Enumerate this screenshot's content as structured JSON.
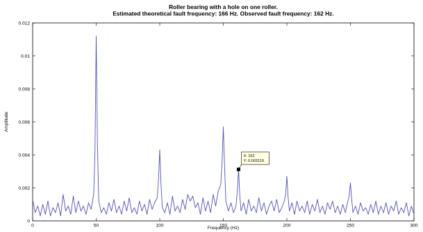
{
  "chart_data": {
    "type": "line",
    "title": [
      "Roller bearing with a hole on one roller.",
      "Estimated theoretical fault frequency: 166 Hz. Observed fault frequency: 162 Hz."
    ],
    "xlabel": "Frequency (Hz)",
    "ylabel": "Amplitude",
    "xlim": [
      0,
      300
    ],
    "ylim": [
      0,
      0.012
    ],
    "xticks": [
      0,
      50,
      100,
      150,
      200,
      250,
      300
    ],
    "yticks": [
      0,
      0.002,
      0.004,
      0.006,
      0.008,
      0.01,
      0.012
    ],
    "xtick_labels": [
      "0",
      "50",
      "100",
      "150",
      "200",
      "250",
      "300"
    ],
    "ytick_labels": [
      "0",
      "0.002",
      "0.004",
      "0.006",
      "0.008",
      "0.01",
      "0.012"
    ],
    "grid": false,
    "line_color": "#5252b4",
    "series": [
      {
        "x": [
          0,
          2,
          4,
          6,
          8,
          10,
          12,
          14,
          16,
          18,
          20,
          22,
          24,
          26,
          28,
          30,
          32,
          34,
          36,
          38,
          40,
          42,
          44,
          46,
          48,
          49,
          50,
          51,
          52,
          54,
          56,
          58,
          60,
          62,
          64,
          66,
          68,
          70,
          72,
          74,
          76,
          78,
          80,
          82,
          84,
          86,
          88,
          90,
          92,
          94,
          96,
          98,
          99,
          100,
          101,
          102,
          104,
          106,
          108,
          110,
          112,
          114,
          116,
          118,
          120,
          122,
          124,
          126,
          128,
          130,
          132,
          134,
          136,
          138,
          140,
          142,
          144,
          146,
          148,
          149,
          150,
          151,
          152,
          154,
          156,
          158,
          160,
          161,
          162,
          163,
          164,
          166,
          168,
          170,
          172,
          174,
          176,
          178,
          180,
          182,
          184,
          186,
          188,
          190,
          192,
          194,
          196,
          198,
          199,
          200,
          201,
          202,
          204,
          206,
          208,
          210,
          212,
          214,
          216,
          218,
          220,
          222,
          224,
          226,
          228,
          230,
          232,
          234,
          236,
          238,
          240,
          242,
          244,
          246,
          248,
          249,
          250,
          251,
          252,
          254,
          256,
          258,
          260,
          262,
          264,
          266,
          268,
          270,
          272,
          274,
          276,
          278,
          280,
          282,
          284,
          286,
          288,
          290,
          292,
          294,
          296,
          298,
          300
        ],
        "y": [
          0.0013,
          0.0005,
          0.0009,
          0.0003,
          0.001,
          0.0004,
          0.0012,
          0.0003,
          0.0008,
          0.0005,
          0.0011,
          0.0003,
          0.0016,
          0.0006,
          0.0009,
          0.0004,
          0.0015,
          0.0005,
          0.0012,
          0.0006,
          0.0009,
          0.0004,
          0.0011,
          0.0007,
          0.0016,
          0.004,
          0.0112,
          0.0045,
          0.0012,
          0.0005,
          0.0008,
          0.0004,
          0.0011,
          0.0006,
          0.0013,
          0.0005,
          0.0009,
          0.0004,
          0.0012,
          0.0006,
          0.0014,
          0.0005,
          0.0008,
          0.0004,
          0.0012,
          0.0006,
          0.001,
          0.0004,
          0.0013,
          0.0007,
          0.0011,
          0.0014,
          0.0025,
          0.0043,
          0.0022,
          0.0008,
          0.0005,
          0.0011,
          0.0004,
          0.0015,
          0.0006,
          0.0009,
          0.0005,
          0.0013,
          0.0007,
          0.0016,
          0.0012,
          0.0015,
          0.0008,
          0.0011,
          0.0004,
          0.0014,
          0.0006,
          0.0012,
          0.0005,
          0.0016,
          0.0009,
          0.0018,
          0.0022,
          0.0035,
          0.0057,
          0.0033,
          0.0012,
          0.0006,
          0.0011,
          0.0005,
          0.0009,
          0.0018,
          0.00312,
          0.0015,
          0.0006,
          0.0011,
          0.0004,
          0.0013,
          0.0006,
          0.0009,
          0.0005,
          0.0014,
          0.0006,
          0.0011,
          0.0004,
          0.0009,
          0.0012,
          0.0006,
          0.0013,
          0.0005,
          0.0008,
          0.0012,
          0.0016,
          0.0027,
          0.0014,
          0.0006,
          0.0011,
          0.0004,
          0.0012,
          0.0006,
          0.0009,
          0.0005,
          0.0012,
          0.0004,
          0.001,
          0.0006,
          0.0013,
          0.0005,
          0.0009,
          0.0004,
          0.0011,
          0.0007,
          0.0012,
          0.0005,
          0.0009,
          0.0004,
          0.001,
          0.0005,
          0.0012,
          0.0015,
          0.0023,
          0.0013,
          0.0005,
          0.0009,
          0.0004,
          0.0011,
          0.0006,
          0.0008,
          0.0004,
          0.001,
          0.0005,
          0.0012,
          0.0004,
          0.0009,
          0.0005,
          0.0011,
          0.0004,
          0.0009,
          0.0006,
          0.0012,
          0.0004,
          0.0008,
          0.0005,
          0.0011,
          0.0003,
          0.0009,
          0.0004
        ]
      }
    ],
    "datatip": {
      "x": 162,
      "y": 0.00312,
      "lines": [
        "X: 162",
        "Y: 0.003119"
      ]
    }
  }
}
